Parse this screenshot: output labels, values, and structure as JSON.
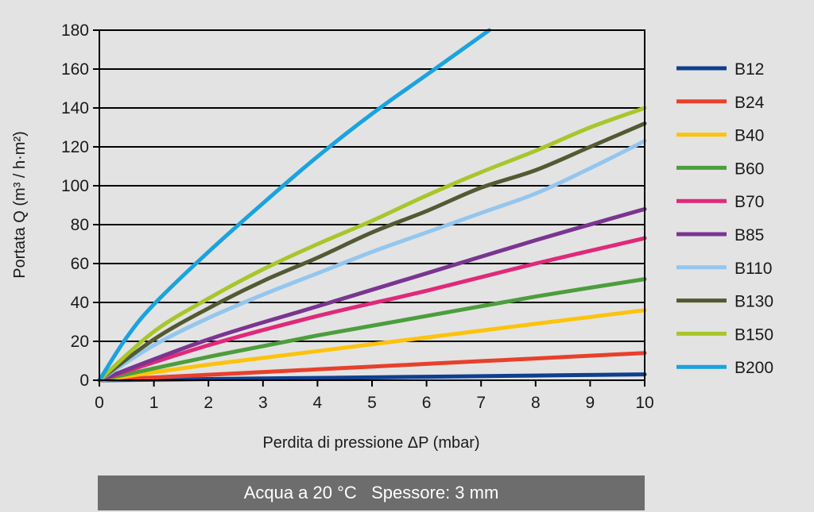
{
  "chart_data": {
    "type": "line",
    "ylabel": "Portata Q (m³ / h·m²)",
    "xlabel": "Perdita di pressione ΔP (mbar)",
    "xlim": [
      0,
      10
    ],
    "ylim": [
      0,
      180
    ],
    "xticks": [
      0,
      1,
      2,
      3,
      4,
      5,
      6,
      7,
      8,
      9,
      10
    ],
    "yticks": [
      0,
      20,
      40,
      60,
      80,
      100,
      120,
      140,
      160,
      180
    ],
    "grid": "horizontal",
    "legend_position": "right",
    "series": [
      {
        "name": "B12",
        "color": "#0f3f8f",
        "x": [
          0,
          2,
          4,
          6,
          8,
          10
        ],
        "y": [
          0,
          0.6,
          1.2,
          1.8,
          2.4,
          3
        ]
      },
      {
        "name": "B24",
        "color": "#e8402c",
        "x": [
          0,
          2,
          4,
          6,
          8,
          10
        ],
        "y": [
          0,
          2.8,
          5.6,
          8.4,
          11.2,
          14
        ]
      },
      {
        "name": "B40",
        "color": "#fcc30c",
        "x": [
          0,
          2,
          4,
          6,
          8,
          10
        ],
        "y": [
          0,
          8,
          15,
          22,
          29,
          36
        ]
      },
      {
        "name": "B60",
        "color": "#4c9e3c",
        "x": [
          0,
          2,
          4,
          6,
          8,
          10
        ],
        "y": [
          0,
          12,
          23,
          33,
          43,
          52
        ]
      },
      {
        "name": "B70",
        "color": "#e0297a",
        "x": [
          0,
          2,
          4,
          6,
          8,
          10
        ],
        "y": [
          0,
          18,
          33,
          46,
          60,
          73
        ]
      },
      {
        "name": "B85",
        "color": "#7a3590",
        "x": [
          0,
          2,
          4,
          6,
          8,
          10
        ],
        "y": [
          0,
          21,
          38,
          55,
          72,
          88
        ]
      },
      {
        "name": "B110",
        "color": "#94c6ee",
        "x": [
          0,
          1,
          2,
          3,
          4,
          5,
          6,
          7,
          8,
          9,
          10
        ],
        "y": [
          0,
          18,
          32,
          44,
          55,
          66,
          76,
          86,
          96,
          109,
          123
        ]
      },
      {
        "name": "B130",
        "color": "#535a33",
        "x": [
          0,
          1,
          2,
          3,
          4,
          5,
          6,
          7,
          8,
          9,
          10
        ],
        "y": [
          0,
          21,
          37,
          51,
          63,
          76,
          87,
          99,
          108,
          120,
          132
        ]
      },
      {
        "name": "B150",
        "color": "#a8c62a",
        "x": [
          0,
          1,
          2,
          3,
          4,
          5,
          6,
          7,
          8,
          9,
          10
        ],
        "y": [
          0,
          25,
          42,
          57,
          70,
          82,
          95,
          107,
          118,
          130,
          140
        ]
      },
      {
        "name": "B200",
        "color": "#1aa3df",
        "x": [
          0,
          0.5,
          1,
          2,
          3,
          4,
          5,
          6,
          7.15
        ],
        "y": [
          0,
          22,
          39,
          66,
          91,
          115,
          137,
          157,
          180
        ]
      }
    ]
  },
  "footer": {
    "text": "Acqua a 20 °C   Spessore: 3 mm"
  }
}
